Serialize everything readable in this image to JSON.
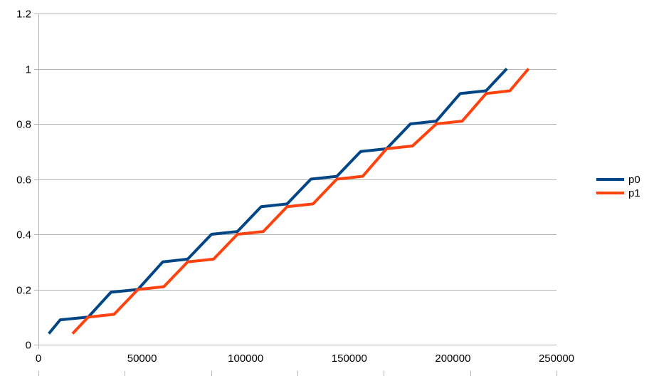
{
  "chart_data": {
    "type": "line",
    "title": "",
    "xlabel": "",
    "ylabel": "",
    "xlim": [
      0,
      250000
    ],
    "ylim": [
      0,
      1.2
    ],
    "x_ticks": [
      0,
      50000,
      100000,
      150000,
      200000,
      250000
    ],
    "x_tick_labels": [
      "0",
      "50000",
      "100000",
      "150000",
      "200000",
      "250000"
    ],
    "y_ticks": [
      0,
      0.2,
      0.4,
      0.6,
      0.8,
      1,
      1.2
    ],
    "y_tick_labels": [
      "0",
      "0.2",
      "0.4",
      "0.6",
      "0.8",
      "1",
      "1.2"
    ],
    "grid": "horizontal",
    "legend_position": "right",
    "series": [
      {
        "name": "p0",
        "color": "#004586",
        "points": [
          [
            5000,
            0.04
          ],
          [
            10500,
            0.09
          ],
          [
            24000,
            0.1
          ],
          [
            35000,
            0.19
          ],
          [
            48000,
            0.2
          ],
          [
            60000,
            0.3
          ],
          [
            72000,
            0.31
          ],
          [
            83500,
            0.4
          ],
          [
            96000,
            0.41
          ],
          [
            107500,
            0.5
          ],
          [
            120000,
            0.51
          ],
          [
            131500,
            0.6
          ],
          [
            144000,
            0.61
          ],
          [
            155500,
            0.7
          ],
          [
            168000,
            0.71
          ],
          [
            179500,
            0.8
          ],
          [
            192000,
            0.81
          ],
          [
            203500,
            0.91
          ],
          [
            216000,
            0.92
          ],
          [
            226000,
            1.0
          ]
        ]
      },
      {
        "name": "p1",
        "color": "#ff420e",
        "points": [
          [
            16500,
            0.04
          ],
          [
            24000,
            0.1
          ],
          [
            36500,
            0.11
          ],
          [
            48000,
            0.2
          ],
          [
            60500,
            0.21
          ],
          [
            72000,
            0.3
          ],
          [
            84500,
            0.31
          ],
          [
            96000,
            0.4
          ],
          [
            108500,
            0.41
          ],
          [
            120000,
            0.5
          ],
          [
            132500,
            0.51
          ],
          [
            144000,
            0.6
          ],
          [
            156500,
            0.61
          ],
          [
            168000,
            0.71
          ],
          [
            180500,
            0.72
          ],
          [
            192000,
            0.8
          ],
          [
            204500,
            0.81
          ],
          [
            216000,
            0.91
          ],
          [
            227500,
            0.92
          ],
          [
            236500,
            1.0
          ]
        ]
      }
    ]
  },
  "colors": {
    "grid": "#b3b3b3",
    "axis": "#b3b3b3",
    "background": "#ffffff"
  }
}
